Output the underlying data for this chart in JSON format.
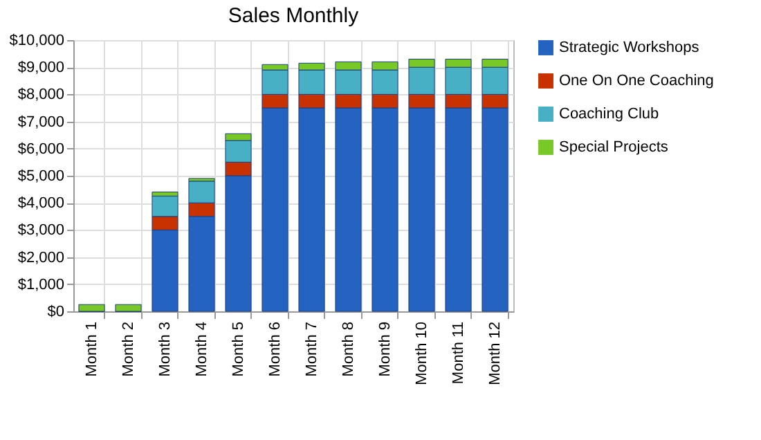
{
  "chart_data": {
    "type": "bar",
    "title": "Sales Monthly",
    "stacked": true,
    "grid": true,
    "legend": "right",
    "categories": [
      "Month 1",
      "Month 2",
      "Month 3",
      "Month 4",
      "Month 5",
      "Month 6",
      "Month 7",
      "Month 8",
      "Month 9",
      "Month 10",
      "Month 11",
      "Month 12"
    ],
    "series": [
      {
        "name": "Strategic Workshops",
        "color": "#2563c0",
        "values": [
          0,
          0,
          3000,
          3500,
          5000,
          7500,
          7500,
          7500,
          7500,
          7500,
          7500,
          7500
        ]
      },
      {
        "name": "One On One Coaching",
        "color": "#c83200",
        "values": [
          0,
          0,
          500,
          500,
          500,
          500,
          500,
          500,
          500,
          500,
          500,
          500
        ]
      },
      {
        "name": "Coaching Club",
        "color": "#48b0c4",
        "values": [
          0,
          0,
          750,
          800,
          800,
          900,
          900,
          900,
          900,
          1000,
          1000,
          1000
        ]
      },
      {
        "name": "Special Projects",
        "color": "#78c828",
        "values": [
          250,
          250,
          150,
          100,
          250,
          200,
          250,
          300,
          300,
          300,
          300,
          300
        ]
      }
    ],
    "ylim": [
      0,
      10000
    ],
    "yticks": [
      {
        "value": 0,
        "label": "$0"
      },
      {
        "value": 1000,
        "label": "$1,000"
      },
      {
        "value": 2000,
        "label": "$2,000"
      },
      {
        "value": 3000,
        "label": "$3,000"
      },
      {
        "value": 4000,
        "label": "$4,000"
      },
      {
        "value": 5000,
        "label": "$5,000"
      },
      {
        "value": 6000,
        "label": "$6,000"
      },
      {
        "value": 7000,
        "label": "$7,000"
      },
      {
        "value": 8000,
        "label": "$8,000"
      },
      {
        "value": 9000,
        "label": "$9,000"
      },
      {
        "value": 10000,
        "label": "$10,000"
      }
    ]
  }
}
